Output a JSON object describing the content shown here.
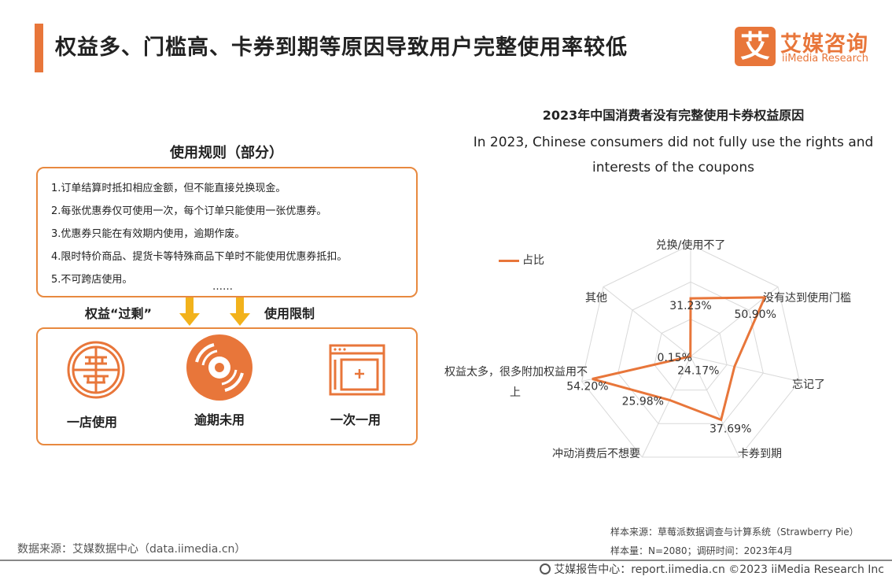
{
  "header": {
    "title": "权益多、门槛高、卡券到期等原因导致用户完整使用率较低",
    "logo_mark": "艾",
    "logo_cn": "艾媒咨询",
    "logo_en": "iiMedia Research"
  },
  "rules": {
    "title": "使用规则（部分）",
    "items": [
      "1.订单结算时抵扣相应金额，但不能直接兑换现金。",
      "2.每张优惠券仅可使用一次，每个订单只能使用一张优惠券。",
      "3.优惠券只能在有效期内使用，逾期作废。",
      "4.限时特价商品、提货卡等特殊商品下单时不能使用优惠券抵扣。",
      "5.不可跨店使用。"
    ],
    "ellipsis": "……"
  },
  "arrows": {
    "left_label": "权益“过剩”",
    "right_label": "使用限制"
  },
  "icons": [
    {
      "label": "一店使用"
    },
    {
      "label": "逾期未用"
    },
    {
      "label": "一次一用"
    }
  ],
  "colors": {
    "accent": "#e8763a",
    "border": "#e8893f",
    "arrow": "#f2b21b",
    "grid": "#d9d9d9"
  },
  "chart_data": {
    "type": "radar",
    "title": "2023年中国消费者没有完整使用卡券权益原因",
    "subtitle": "In 2023, Chinese consumers did not fully use the rights and interests of the coupons",
    "legend": [
      "占比"
    ],
    "legend_position": "top-left",
    "unit": "%",
    "range": [
      0,
      60
    ],
    "categories": [
      "兑换/使用不了",
      "没有达到使用门槛",
      "忘记了",
      "卡券到期",
      "冲动消费后不想要",
      "权益太多，很多附加权益用不上",
      "其他"
    ],
    "series": [
      {
        "name": "占比",
        "values": [
          31.23,
          50.9,
          24.17,
          37.69,
          25.98,
          54.2,
          0.15
        ]
      }
    ],
    "data_labels": [
      "31.23%",
      "50.90%",
      "24.17%",
      "37.69%",
      "25.98%",
      "54.20%",
      "0.15%"
    ]
  },
  "footer": {
    "source_left": "数据来源：艾媒数据中心（data.iimedia.cn）",
    "sample_source": "样本来源：草莓派数据调查与计算系统（Strawberry Pie）",
    "sample_size": "样本量：N=2080；调研时间：2023年4月",
    "copyright": "艾媒报告中心：report.iimedia.cn  ©2023  iiMedia Research  Inc"
  }
}
